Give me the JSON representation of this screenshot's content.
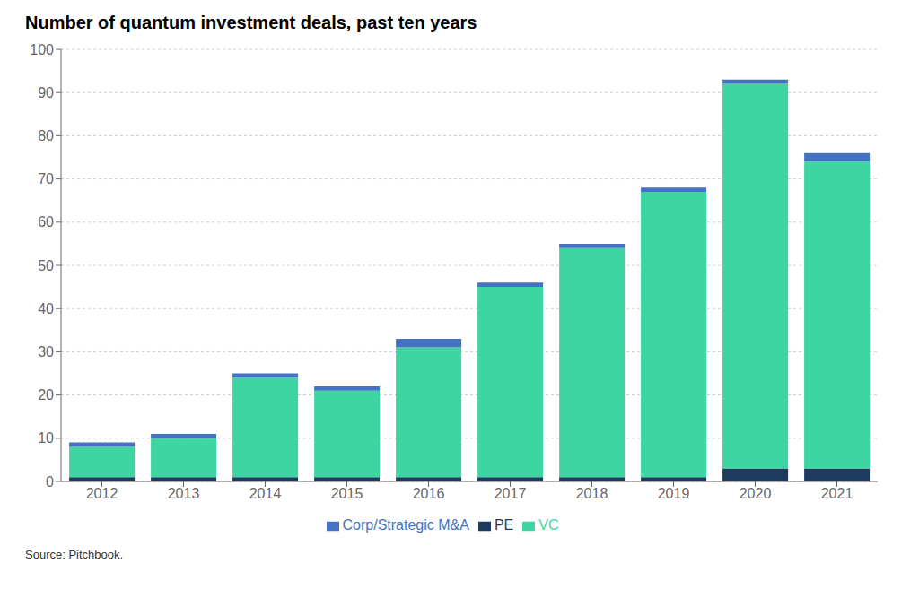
{
  "chart_data": {
    "type": "bar",
    "title": "Number of quantum investment deals, past ten years",
    "annotations": [
      "Source: Pitchbook."
    ],
    "categories": [
      "2012",
      "2013",
      "2014",
      "2015",
      "2016",
      "2017",
      "2018",
      "2019",
      "2020",
      "2021"
    ],
    "series": [
      {
        "name": "PE",
        "color": "#1e3a5f",
        "values": [
          1,
          1,
          1,
          1,
          1,
          1,
          1,
          1,
          3,
          3
        ]
      },
      {
        "name": "VC",
        "color": "#3dd6a3",
        "values": [
          7,
          9,
          23,
          20,
          30,
          44,
          53,
          66,
          89,
          71
        ]
      },
      {
        "name": "Corp/Strategic M&A",
        "color": "#4472c4",
        "values": [
          1,
          1,
          1,
          1,
          2,
          1,
          1,
          1,
          1,
          2
        ]
      }
    ],
    "ylim": [
      0,
      100
    ],
    "yticks": [
      0,
      10,
      20,
      30,
      40,
      50,
      60,
      70,
      80,
      90,
      100
    ],
    "stacked": true,
    "grid": true,
    "legend": "bottom"
  }
}
